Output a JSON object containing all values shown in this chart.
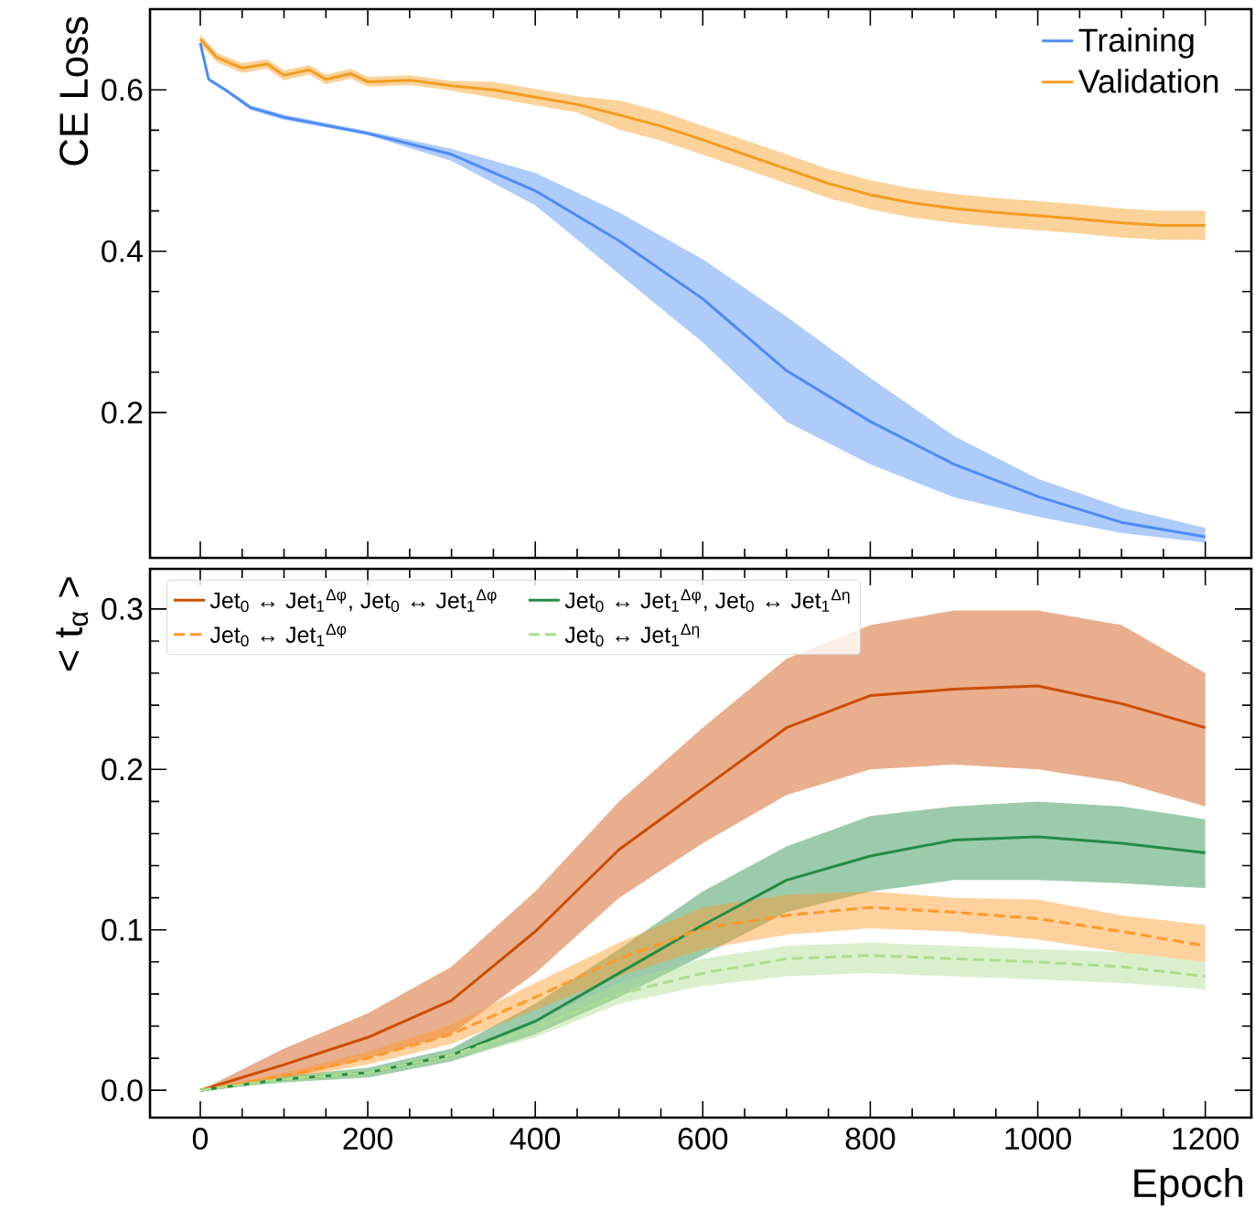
{
  "chart_data": [
    {
      "type": "line",
      "ylabel": "CE Loss",
      "xlim": [
        -60,
        1255
      ],
      "ylim": [
        0.02,
        0.7
      ],
      "xticks": [
        0,
        200,
        400,
        600,
        800,
        1000,
        1200
      ],
      "yticks": [
        0.2,
        0.4,
        0.6
      ],
      "tick_labels": "y",
      "legend": "top right",
      "grid": false,
      "marker": "none",
      "series": [
        {
          "name": "Training",
          "color": "#4c8bf5",
          "line_style": "solid",
          "x": [
            0,
            10,
            30,
            60,
            100,
            200,
            300,
            400,
            500,
            600,
            700,
            800,
            900,
            1000,
            1100,
            1200
          ],
          "values": [
            0.658,
            0.613,
            0.6,
            0.578,
            0.566,
            0.546,
            0.52,
            0.475,
            0.413,
            0.341,
            0.252,
            0.189,
            0.136,
            0.096,
            0.064,
            0.046
          ],
          "lower": [
            0.656,
            0.611,
            0.598,
            0.575,
            0.563,
            0.544,
            0.512,
            0.457,
            0.372,
            0.287,
            0.189,
            0.136,
            0.095,
            0.071,
            0.051,
            0.039
          ],
          "upper": [
            0.66,
            0.615,
            0.602,
            0.581,
            0.569,
            0.549,
            0.527,
            0.497,
            0.448,
            0.39,
            0.319,
            0.243,
            0.171,
            0.118,
            0.082,
            0.057
          ]
        },
        {
          "name": "Validation",
          "color": "#f39c1f",
          "line_style": "solid",
          "x": [
            0,
            20,
            50,
            80,
            100,
            130,
            150,
            180,
            200,
            250,
            300,
            350,
            400,
            450,
            500,
            550,
            600,
            650,
            700,
            750,
            800,
            850,
            900,
            950,
            1000,
            1050,
            1100,
            1150,
            1200
          ],
          "values": [
            0.663,
            0.64,
            0.627,
            0.632,
            0.618,
            0.625,
            0.613,
            0.62,
            0.61,
            0.612,
            0.605,
            0.6,
            0.591,
            0.582,
            0.569,
            0.555,
            0.538,
            0.52,
            0.502,
            0.484,
            0.47,
            0.46,
            0.453,
            0.448,
            0.444,
            0.44,
            0.435,
            0.432,
            0.432
          ],
          "lower": [
            0.6565,
            0.634,
            0.621,
            0.626,
            0.612,
            0.619,
            0.607,
            0.614,
            0.604,
            0.606,
            0.599,
            0.59,
            0.581,
            0.572,
            0.551,
            0.537,
            0.5195,
            0.502,
            0.484,
            0.466,
            0.452,
            0.442,
            0.435,
            0.43,
            0.426,
            0.422,
            0.417,
            0.414,
            0.414
          ],
          "upper": [
            0.6685,
            0.646,
            0.633,
            0.638,
            0.624,
            0.631,
            0.619,
            0.626,
            0.616,
            0.618,
            0.611,
            0.61,
            0.601,
            0.592,
            0.587,
            0.573,
            0.5555,
            0.538,
            0.52,
            0.502,
            0.488,
            0.478,
            0.471,
            0.466,
            0.462,
            0.458,
            0.453,
            0.45,
            0.45
          ]
        }
      ]
    },
    {
      "type": "line",
      "xlabel": "Epoch",
      "ylabel": "< t$_{α}$ >",
      "xlim": [
        -60,
        1255
      ],
      "ylim": [
        -0.017,
        0.325
      ],
      "xticks": [
        0,
        200,
        400,
        600,
        800,
        1000,
        1200
      ],
      "yticks": [
        {
          "value": 0,
          "label": "0.0"
        },
        0.1,
        0.2,
        0.3
      ],
      "legend": "top left",
      "grid": false,
      "marker": "none",
      "series": [
        {
          "name": "Jet$_{0}$ ↔ Jet$_{1}$$^{Δφ}$, Jet$_{0}$ ↔ Jet$_{1}$$^{Δφ}$",
          "color": "#cc4c02",
          "line_style": "solid",
          "x": [
            0,
            100,
            200,
            300,
            400,
            500,
            600,
            700,
            800,
            900,
            1000,
            1100,
            1200
          ],
          "values": [
            0,
            0.016,
            0.033,
            0.056,
            0.099,
            0.15,
            0.188,
            0.226,
            0.246,
            0.25,
            0.252,
            0.241,
            0.226
          ],
          "lower": [
            0,
            0.007,
            0.02,
            0.035,
            0.073,
            0.12,
            0.154,
            0.184,
            0.2,
            0.203,
            0.2,
            0.192,
            0.177
          ],
          "upper": [
            0,
            0.026,
            0.048,
            0.077,
            0.124,
            0.18,
            0.226,
            0.269,
            0.29,
            0.299,
            0.299,
            0.29,
            0.26
          ]
        },
        {
          "name": "Jet$_{0}$ ↔ Jet$_{1}$$^{Δφ}$, Jet$_{0}$ ↔ Jet$_{1}$$^{Δη}$",
          "color": "#238b45",
          "line_style": "solid",
          "x": [
            0,
            100,
            200,
            300,
            400,
            500,
            600,
            700,
            800,
            900,
            1000,
            1100,
            1200
          ],
          "values": [
            0,
            0.007,
            0.011,
            0.022,
            0.043,
            0.073,
            0.103,
            0.131,
            0.146,
            0.156,
            0.158,
            0.154,
            0.148
          ],
          "lower": [
            0,
            0.005,
            0.008,
            0.018,
            0.035,
            0.058,
            0.084,
            0.111,
            0.124,
            0.131,
            0.131,
            0.129,
            0.126
          ],
          "upper": [
            0,
            0.009,
            0.014,
            0.026,
            0.054,
            0.088,
            0.124,
            0.152,
            0.171,
            0.177,
            0.18,
            0.177,
            0.169
          ]
        },
        {
          "name": "Jet$_{0}$ ↔ Jet$_{1}$$^{Δφ}$",
          "color": "#fe9929",
          "line_style": "dashed",
          "x": [
            0,
            100,
            200,
            300,
            400,
            500,
            600,
            700,
            800,
            900,
            1000,
            1100,
            1200
          ],
          "values": [
            0,
            0.009,
            0.02,
            0.035,
            0.058,
            0.082,
            0.101,
            0.109,
            0.114,
            0.111,
            0.107,
            0.099,
            0.09
          ],
          "lower": [
            0,
            0.007,
            0.016,
            0.029,
            0.05,
            0.071,
            0.088,
            0.097,
            0.101,
            0.099,
            0.094,
            0.086,
            0.08
          ],
          "upper": [
            0,
            0.011,
            0.024,
            0.041,
            0.067,
            0.092,
            0.114,
            0.122,
            0.124,
            0.12,
            0.119,
            0.109,
            0.103
          ]
        },
        {
          "name": "Jet$_{0}$ ↔ Jet$_{1}$$^{Δη}$",
          "color": "#addd8e",
          "line_style": "dashed",
          "x": [
            0,
            100,
            200,
            300,
            400,
            500,
            600,
            700,
            800,
            900,
            1000,
            1100,
            1200
          ],
          "values": [
            0,
            0.007,
            0.011,
            0.022,
            0.039,
            0.06,
            0.073,
            0.082,
            0.084,
            0.082,
            0.08,
            0.077,
            0.071
          ],
          "lower": [
            0,
            0.005,
            0.009,
            0.019,
            0.033,
            0.054,
            0.065,
            0.071,
            0.073,
            0.071,
            0.069,
            0.067,
            0.063
          ],
          "upper": [
            0,
            0.009,
            0.013,
            0.024,
            0.043,
            0.067,
            0.082,
            0.09,
            0.092,
            0.09,
            0.088,
            0.086,
            0.08
          ]
        }
      ]
    }
  ]
}
